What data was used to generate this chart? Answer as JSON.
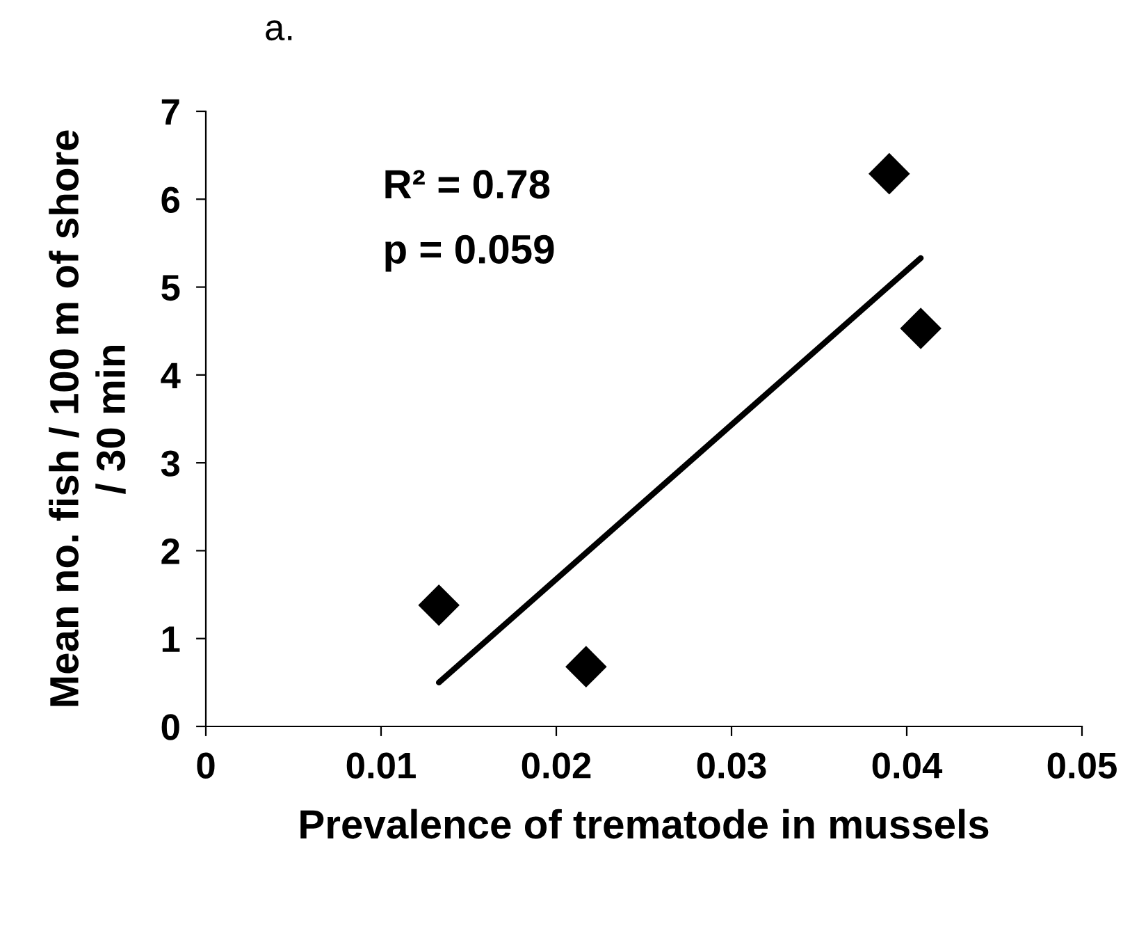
{
  "chart_data": {
    "type": "scatter",
    "xlabel": "Prevalence of trematode in mussels",
    "ylabel": "Mean no. fish / 100 m of shore\n/ 30 min",
    "x": [
      0.0133,
      0.0217,
      0.039,
      0.0408
    ],
    "series": [
      {
        "color": "#000000",
        "values": [
          1.38,
          0.68,
          6.29,
          4.53
        ],
        "marker": "diamond"
      },
      {
        "type": "line",
        "color": "#000000",
        "x": [
          0.0133,
          0.0408
        ],
        "values": [
          0.5,
          5.33
        ],
        "marker": "none",
        "line_style": "solid"
      }
    ],
    "xlim": [
      0,
      0.05
    ],
    "xticks": [
      0,
      0.01,
      0.02,
      0.03,
      0.04,
      0.05
    ],
    "ylim": [
      0,
      7
    ],
    "yticks": [
      0,
      1,
      2,
      3,
      4,
      5,
      6,
      7
    ],
    "grid": false,
    "legend": false,
    "annotations": [
      "a.",
      "R² = 0.78",
      "p = 0.059"
    ]
  }
}
